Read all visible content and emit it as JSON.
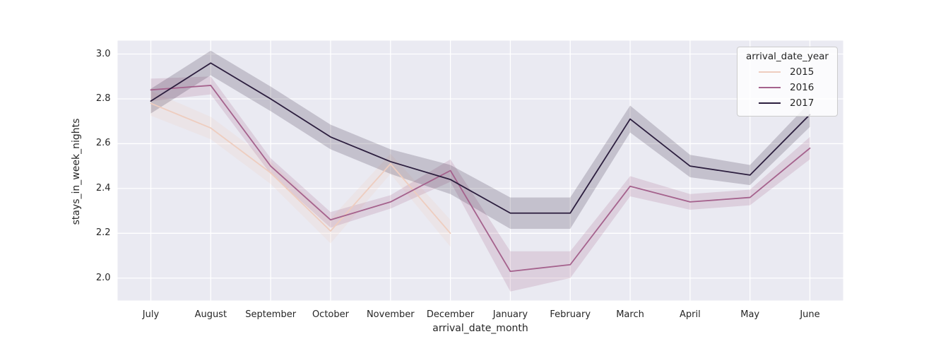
{
  "figure": {
    "background": "#ffffff",
    "plot_background": "#eaeaf2",
    "grid_color": "#ffffff",
    "text_color": "#262626"
  },
  "chart_data": {
    "type": "line",
    "title": "",
    "xlabel": "arrival_date_month",
    "ylabel": "stays_in_week_nights",
    "categories": [
      "July",
      "August",
      "September",
      "October",
      "November",
      "December",
      "January",
      "February",
      "March",
      "April",
      "May",
      "June"
    ],
    "yticks": [
      "3.0",
      "2.8",
      "2.6",
      "2.4",
      "2.2",
      "2.0"
    ],
    "ytick_values": [
      3.0,
      2.8,
      2.6,
      2.4,
      2.2,
      2.0
    ],
    "ylim": [
      1.9,
      3.06
    ],
    "grid": true,
    "band_alpha": 0.2,
    "legend": {
      "title": "arrival_date_year",
      "position": "upper right"
    },
    "series": [
      {
        "name": "2015",
        "color": "#eecdbf",
        "values": [
          2.78,
          2.67,
          2.47,
          2.21,
          2.51,
          2.2,
          null,
          null,
          null,
          null,
          null,
          null
        ],
        "ci_halfwidth": [
          0.055,
          0.05,
          0.05,
          0.055,
          0.045,
          0.06,
          0,
          0,
          0,
          0,
          0,
          0
        ]
      },
      {
        "name": "2016",
        "color": "#a5628d",
        "values": [
          2.84,
          2.86,
          2.5,
          2.26,
          2.34,
          2.48,
          2.03,
          2.06,
          2.41,
          2.34,
          2.36,
          2.58
        ],
        "ci_halfwidth": [
          0.05,
          0.04,
          0.035,
          0.035,
          0.03,
          0.05,
          0.09,
          0.06,
          0.045,
          0.035,
          0.035,
          0.05
        ]
      },
      {
        "name": "2017",
        "color": "#2c1e3e",
        "values": [
          2.79,
          2.96,
          2.8,
          2.63,
          2.52,
          2.44,
          2.29,
          2.29,
          2.71,
          2.5,
          2.46,
          2.73
        ],
        "ci_halfwidth": [
          0.055,
          0.055,
          0.055,
          0.055,
          0.055,
          0.065,
          0.07,
          0.07,
          0.06,
          0.05,
          0.045,
          0.055
        ]
      }
    ]
  }
}
